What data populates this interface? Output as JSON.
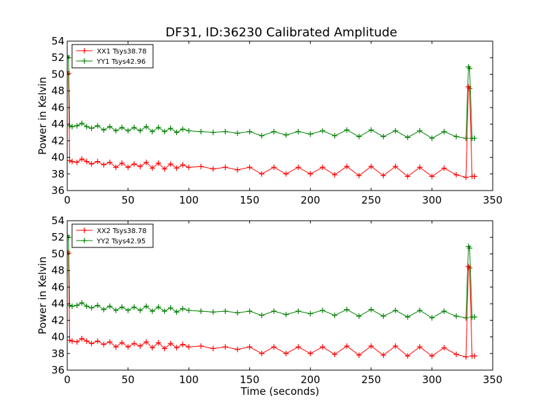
{
  "figure": {
    "title": "DF31, ID:36230 Calibrated Amplitude",
    "colors": {
      "xx": "#ff0000",
      "yy": "#008000"
    }
  },
  "chart_data": [
    {
      "type": "line",
      "title": "DF31, ID:36230 Calibrated Amplitude",
      "xlabel": "",
      "ylabel": "Power in Kelvin",
      "xlim": [
        0,
        350
      ],
      "ylim": [
        36,
        54
      ],
      "xticks": [
        0,
        50,
        100,
        150,
        200,
        250,
        300,
        350
      ],
      "yticks": [
        36,
        38,
        40,
        42,
        44,
        46,
        48,
        50,
        52,
        54
      ],
      "grid": false,
      "legend_position": "top-left",
      "marker": "+",
      "series": [
        {
          "name": "XX1 Tsys38.78",
          "color": "#ff0000",
          "x": [
            0,
            1,
            2,
            4,
            8,
            12,
            16,
            20,
            25,
            30,
            35,
            40,
            45,
            50,
            55,
            60,
            65,
            70,
            75,
            80,
            85,
            90,
            95,
            100,
            110,
            120,
            130,
            140,
            150,
            160,
            170,
            180,
            190,
            200,
            210,
            220,
            230,
            240,
            250,
            260,
            270,
            280,
            290,
            300,
            310,
            320,
            328,
            330,
            331,
            333,
            335
          ],
          "y": [
            50.3,
            50.1,
            39.6,
            39.5,
            39.4,
            39.8,
            39.5,
            39.2,
            39.5,
            39.1,
            39.4,
            38.8,
            39.3,
            38.8,
            39.2,
            38.9,
            39.4,
            38.7,
            39.3,
            38.6,
            39.2,
            38.7,
            39.1,
            38.8,
            38.9,
            38.6,
            38.8,
            38.5,
            38.8,
            38.0,
            38.8,
            38.0,
            38.8,
            38.0,
            38.8,
            37.9,
            38.9,
            37.8,
            38.9,
            37.8,
            38.9,
            37.7,
            38.8,
            37.7,
            38.7,
            37.9,
            37.6,
            48.5,
            48.3,
            37.7,
            37.7
          ]
        },
        {
          "name": "YY1 Tsys42.96",
          "color": "#008000",
          "x": [
            0,
            1,
            2,
            4,
            8,
            12,
            16,
            20,
            25,
            30,
            35,
            40,
            45,
            50,
            55,
            60,
            65,
            70,
            75,
            80,
            85,
            90,
            95,
            100,
            110,
            120,
            130,
            140,
            150,
            160,
            170,
            180,
            190,
            200,
            210,
            220,
            230,
            240,
            250,
            260,
            270,
            280,
            290,
            300,
            310,
            320,
            328,
            330,
            331,
            333,
            335
          ],
          "y": [
            52.2,
            52.0,
            43.8,
            43.7,
            43.8,
            44.1,
            43.7,
            43.5,
            43.8,
            43.3,
            43.7,
            43.2,
            43.6,
            43.2,
            43.6,
            43.2,
            43.7,
            43.1,
            43.6,
            43.1,
            43.5,
            43.0,
            43.4,
            43.2,
            43.1,
            43.0,
            43.1,
            42.9,
            43.1,
            42.6,
            43.1,
            42.7,
            43.1,
            42.8,
            43.2,
            42.6,
            43.3,
            42.5,
            43.3,
            42.5,
            43.2,
            42.4,
            43.2,
            42.3,
            43.1,
            42.5,
            42.3,
            50.9,
            50.7,
            42.3,
            42.3
          ]
        }
      ]
    },
    {
      "type": "line",
      "title": "",
      "xlabel": "Time (seconds)",
      "ylabel": "Power in Kelvin",
      "xlim": [
        0,
        350
      ],
      "ylim": [
        36,
        54
      ],
      "xticks": [
        0,
        50,
        100,
        150,
        200,
        250,
        300,
        350
      ],
      "yticks": [
        36,
        38,
        40,
        42,
        44,
        46,
        48,
        50,
        52,
        54
      ],
      "grid": false,
      "legend_position": "top-left",
      "marker": "+",
      "series": [
        {
          "name": "XX2 Tsys38.78",
          "color": "#ff0000",
          "x": [
            0,
            1,
            2,
            4,
            8,
            12,
            16,
            20,
            25,
            30,
            35,
            40,
            45,
            50,
            55,
            60,
            65,
            70,
            75,
            80,
            85,
            90,
            95,
            100,
            110,
            120,
            130,
            140,
            150,
            160,
            170,
            180,
            190,
            200,
            210,
            220,
            230,
            240,
            250,
            260,
            270,
            280,
            290,
            300,
            310,
            320,
            328,
            330,
            331,
            333,
            335
          ],
          "y": [
            50.3,
            50.1,
            39.6,
            39.5,
            39.4,
            39.8,
            39.5,
            39.2,
            39.5,
            39.1,
            39.4,
            38.8,
            39.3,
            38.8,
            39.2,
            38.9,
            39.4,
            38.7,
            39.3,
            38.6,
            39.2,
            38.7,
            39.1,
            38.8,
            38.9,
            38.6,
            38.8,
            38.5,
            38.8,
            38.0,
            38.8,
            38.0,
            38.8,
            38.0,
            38.8,
            37.9,
            38.9,
            37.8,
            38.9,
            37.8,
            38.9,
            37.7,
            38.8,
            37.7,
            38.7,
            37.9,
            37.6,
            48.5,
            48.3,
            37.7,
            37.7
          ]
        },
        {
          "name": "YY2 Tsys42.95",
          "color": "#008000",
          "x": [
            0,
            1,
            2,
            4,
            8,
            12,
            16,
            20,
            25,
            30,
            35,
            40,
            45,
            50,
            55,
            60,
            65,
            70,
            75,
            80,
            85,
            90,
            95,
            100,
            110,
            120,
            130,
            140,
            150,
            160,
            170,
            180,
            190,
            200,
            210,
            220,
            230,
            240,
            250,
            260,
            270,
            280,
            290,
            300,
            310,
            320,
            328,
            330,
            331,
            333,
            335
          ],
          "y": [
            52.2,
            52.0,
            43.8,
            43.7,
            43.8,
            44.1,
            43.7,
            43.5,
            43.8,
            43.3,
            43.7,
            43.2,
            43.6,
            43.2,
            43.6,
            43.2,
            43.7,
            43.1,
            43.6,
            43.1,
            43.5,
            43.0,
            43.4,
            43.2,
            43.1,
            43.0,
            43.1,
            42.9,
            43.1,
            42.6,
            43.1,
            42.7,
            43.1,
            42.8,
            43.2,
            42.6,
            43.3,
            42.5,
            43.3,
            42.5,
            43.2,
            42.4,
            43.2,
            42.3,
            43.1,
            42.5,
            42.3,
            50.9,
            50.7,
            42.4,
            42.4
          ]
        }
      ]
    }
  ]
}
